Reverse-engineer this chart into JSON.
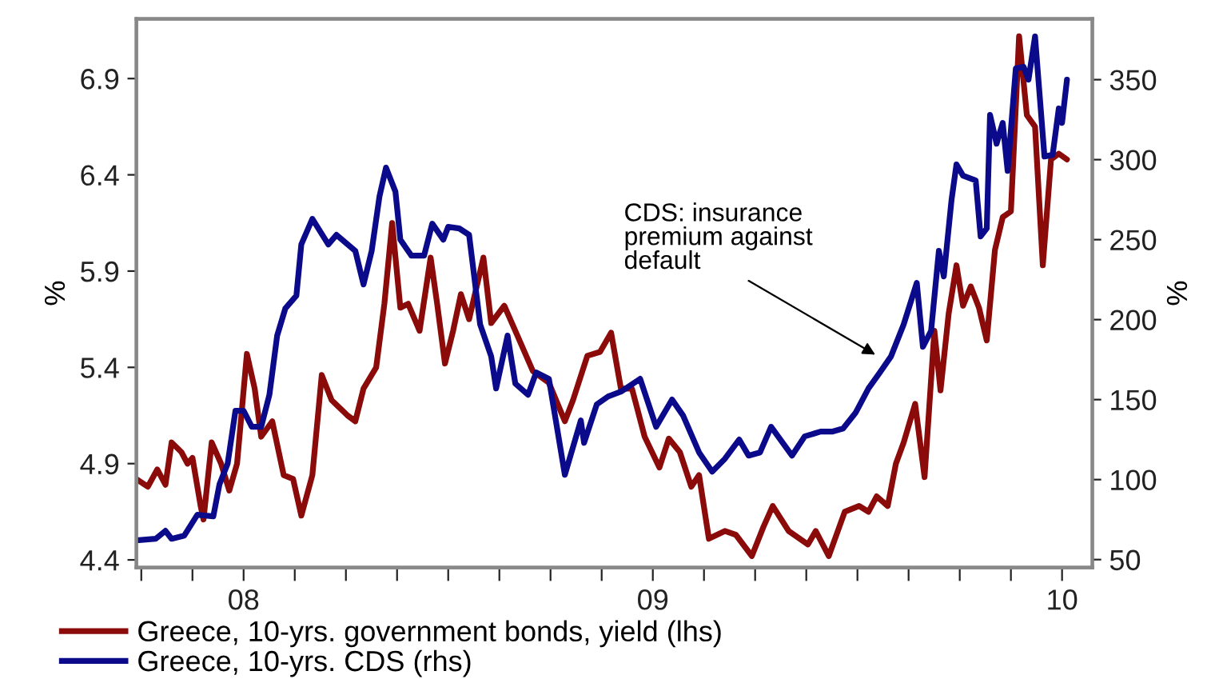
{
  "chart_data": {
    "type": "line",
    "ylabel": "%",
    "y2label": "%",
    "xlim": [
      2007.738,
      2010.074
    ],
    "xticks": [
      {
        "value": 2007.75,
        "label": null
      },
      {
        "value": 2007.875,
        "label": null
      },
      {
        "value": 2008,
        "label": "08"
      },
      {
        "value": 2008.125,
        "label": null
      },
      {
        "value": 2008.25,
        "label": null
      },
      {
        "value": 2008.375,
        "label": null
      },
      {
        "value": 2008.5,
        "label": null
      },
      {
        "value": 2008.625,
        "label": null
      },
      {
        "value": 2008.75,
        "label": null
      },
      {
        "value": 2008.875,
        "label": null
      },
      {
        "value": 2009,
        "label": "09"
      },
      {
        "value": 2009.125,
        "label": null
      },
      {
        "value": 2009.25,
        "label": null
      },
      {
        "value": 2009.375,
        "label": null
      },
      {
        "value": 2009.5,
        "label": null
      },
      {
        "value": 2009.625,
        "label": null
      },
      {
        "value": 2009.75,
        "label": null
      },
      {
        "value": 2009.875,
        "label": null
      },
      {
        "value": 2010,
        "label": "10"
      }
    ],
    "ylim": [
      4.36,
      7.21
    ],
    "yticks": [
      4.4,
      4.9,
      5.4,
      5.9,
      6.4,
      6.9
    ],
    "y2lim": [
      45,
      388
    ],
    "y2ticks": [
      50,
      100,
      150,
      200,
      250,
      300,
      350
    ],
    "grid": false,
    "legend": "bottom",
    "marker": "none",
    "line_style": "solid",
    "annotations": [
      "CDS: insurance\npremium against\ndefault"
    ],
    "series": [
      {
        "name": "Greece, 10-yrs. government bonds, yield (lhs)",
        "color": "#8b0a0a",
        "x": [
          2007.738,
          2007.766,
          2007.789,
          2007.809,
          2007.824,
          2007.848,
          2007.863,
          2007.875,
          2007.895,
          2007.902,
          2007.922,
          2007.945,
          2007.965,
          2007.984,
          2008.008,
          2008.027,
          2008.043,
          2008.07,
          2008.098,
          2008.121,
          2008.141,
          2008.168,
          2008.191,
          2008.215,
          2008.254,
          2008.273,
          2008.293,
          2008.324,
          2008.344,
          2008.363,
          2008.383,
          2008.402,
          2008.43,
          2008.457,
          2008.473,
          2008.492,
          2008.512,
          2008.531,
          2008.551,
          2008.586,
          2008.605,
          2008.637,
          2008.668,
          2008.707,
          2008.746,
          2008.785,
          2008.805,
          2008.84,
          2008.871,
          2008.898,
          2008.922,
          2008.949,
          2008.98,
          2009.016,
          2009.039,
          2009.066,
          2009.094,
          2009.113,
          2009.137,
          2009.176,
          2009.203,
          2009.242,
          2009.27,
          2009.293,
          2009.332,
          2009.379,
          2009.398,
          2009.43,
          2009.469,
          2009.504,
          2009.527,
          2009.547,
          2009.574,
          2009.594,
          2009.613,
          2009.641,
          2009.664,
          2009.688,
          2009.703,
          2009.723,
          2009.742,
          2009.758,
          2009.777,
          2009.797,
          2009.816,
          2009.836,
          2009.855,
          2009.875,
          2009.895,
          2009.914,
          2009.934,
          2009.953,
          2009.973,
          2009.992,
          2010.012
        ],
        "values": [
          4.82,
          4.78,
          4.87,
          4.79,
          5.01,
          4.96,
          4.9,
          4.93,
          4.68,
          4.61,
          5.01,
          4.9,
          4.76,
          4.9,
          5.47,
          5.29,
          5.04,
          5.12,
          4.84,
          4.82,
          4.63,
          4.84,
          5.36,
          5.23,
          5.15,
          5.12,
          5.29,
          5.4,
          5.73,
          6.15,
          5.71,
          5.73,
          5.59,
          5.97,
          5.73,
          5.42,
          5.59,
          5.78,
          5.65,
          5.97,
          5.63,
          5.72,
          5.57,
          5.38,
          5.32,
          5.12,
          5.23,
          5.46,
          5.48,
          5.58,
          5.29,
          5.29,
          5.04,
          4.88,
          5.03,
          4.96,
          4.78,
          4.84,
          4.51,
          4.55,
          4.53,
          4.42,
          4.57,
          4.68,
          4.55,
          4.48,
          4.55,
          4.42,
          4.65,
          4.68,
          4.65,
          4.73,
          4.68,
          4.9,
          5.01,
          5.21,
          4.83,
          5.59,
          5.28,
          5.68,
          5.93,
          5.72,
          5.82,
          5.71,
          5.54,
          6.01,
          6.18,
          6.21,
          7.12,
          6.71,
          6.65,
          5.93,
          6.48,
          6.51,
          6.48
        ]
      },
      {
        "name": "Greece, 10-yrs. CDS (rhs)",
        "color": "#0a0a8b",
        "axis": "y2",
        "x": [
          2007.738,
          2007.785,
          2007.809,
          2007.824,
          2007.855,
          2007.887,
          2007.926,
          2007.941,
          2007.961,
          2007.98,
          2008.0,
          2008.02,
          2008.043,
          2008.063,
          2008.082,
          2008.102,
          2008.129,
          2008.141,
          2008.168,
          2008.207,
          2008.227,
          2008.273,
          2008.293,
          2008.313,
          2008.332,
          2008.348,
          2008.371,
          2008.383,
          2008.41,
          2008.441,
          2008.461,
          2008.488,
          2008.5,
          2008.527,
          2008.551,
          2008.578,
          2008.605,
          2008.617,
          2008.645,
          2008.664,
          2008.695,
          2008.715,
          2008.746,
          2008.785,
          2008.824,
          2008.832,
          2008.863,
          2008.891,
          2008.922,
          2008.969,
          2009.008,
          2009.047,
          2009.074,
          2009.113,
          2009.145,
          2009.176,
          2009.211,
          2009.234,
          2009.262,
          2009.289,
          2009.34,
          2009.371,
          2009.41,
          2009.438,
          2009.465,
          2009.496,
          2009.527,
          2009.555,
          2009.582,
          2009.613,
          2009.645,
          2009.66,
          2009.68,
          2009.699,
          2009.711,
          2009.73,
          2009.742,
          2009.758,
          2009.789,
          2009.801,
          2009.816,
          2009.824,
          2009.84,
          2009.855,
          2009.867,
          2009.887,
          2009.906,
          2009.918,
          2009.934,
          2009.957,
          2009.977,
          2009.992,
          2010.0,
          2010.012
        ],
        "values": [
          62,
          63,
          68,
          63,
          65,
          78,
          77,
          97,
          110,
          143,
          143,
          133,
          133,
          153,
          190,
          207,
          215,
          247,
          263,
          247,
          253,
          243,
          222,
          243,
          277,
          295,
          280,
          250,
          240,
          240,
          260,
          250,
          258,
          257,
          253,
          197,
          177,
          157,
          190,
          160,
          153,
          167,
          163,
          103,
          137,
          123,
          147,
          152,
          155,
          163,
          133,
          150,
          140,
          117,
          105,
          113,
          125,
          115,
          117,
          133,
          115,
          127,
          130,
          130,
          132,
          142,
          157,
          167,
          177,
          197,
          223,
          183,
          193,
          243,
          227,
          275,
          297,
          290,
          287,
          252,
          257,
          328,
          310,
          323,
          293,
          357,
          358,
          350,
          377,
          302,
          303,
          332,
          323,
          350
        ]
      }
    ]
  }
}
